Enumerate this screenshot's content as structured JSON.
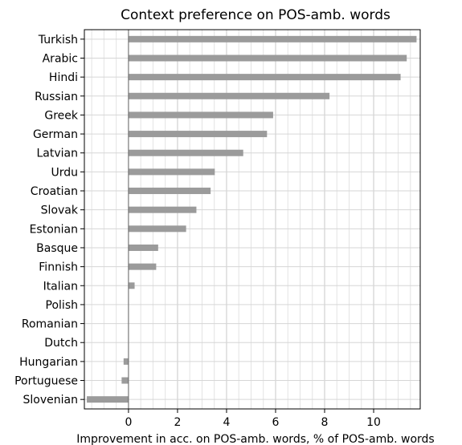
{
  "chart_data": {
    "type": "bar",
    "orientation": "horizontal",
    "title": "Context preference on POS-amb. words",
    "xlabel": "Improvement in acc. on POS-amb. words, % of POS-amb. words",
    "ylabel": "",
    "xlim": [
      -1.8,
      11.9
    ],
    "xticks": [
      0,
      2,
      4,
      6,
      8,
      10
    ],
    "grid": true,
    "bar_color": "#9b9b9b",
    "categories": [
      "Turkish",
      "Arabic",
      "Hindi",
      "Russian",
      "Greek",
      "German",
      "Latvian",
      "Urdu",
      "Croatian",
      "Slovak",
      "Estonian",
      "Basque",
      "Finnish",
      "Italian",
      "Polish",
      "Romanian",
      "Dutch",
      "Hungarian",
      "Portuguese",
      "Slovenian"
    ],
    "values": [
      11.75,
      11.35,
      11.1,
      8.2,
      5.9,
      5.65,
      4.68,
      3.52,
      3.35,
      2.77,
      2.35,
      1.21,
      1.13,
      0.25,
      0.0,
      0.0,
      0.0,
      -0.2,
      -0.28,
      -1.7
    ]
  }
}
